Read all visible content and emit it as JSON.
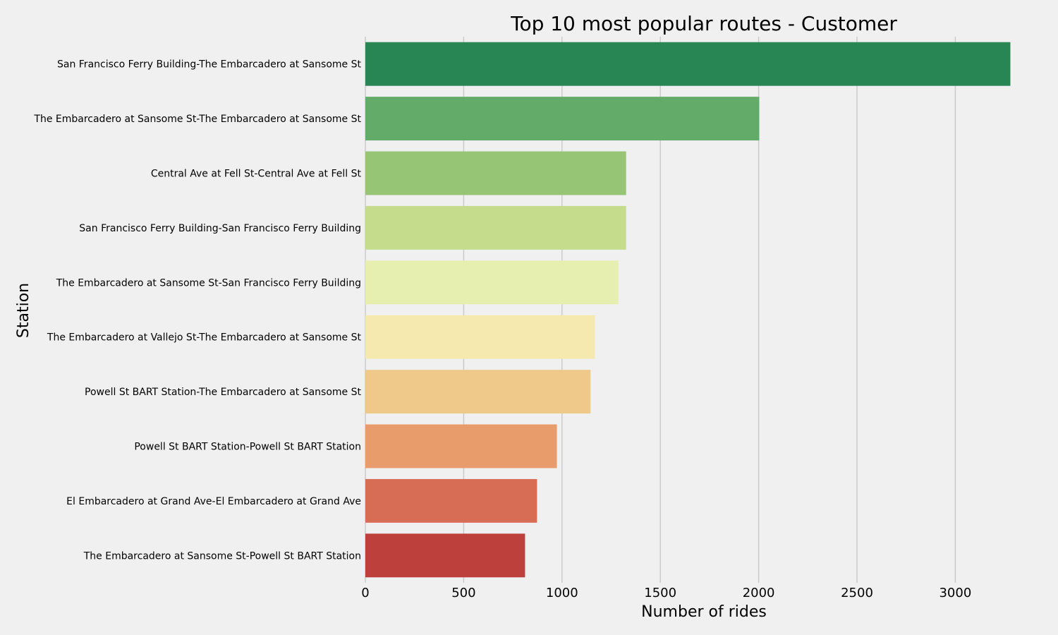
{
  "chart_data": {
    "type": "bar",
    "orientation": "horizontal",
    "title": "Top 10 most popular routes - Customer",
    "xlabel": "Number of rides",
    "ylabel": "Station",
    "xlim": [
      0,
      3350
    ],
    "xticks": [
      0,
      500,
      1000,
      1500,
      2000,
      2500,
      3000
    ],
    "grid": "vertical",
    "categories": [
      "San Francisco Ferry Building-The Embarcadero at Sansome St",
      "The Embarcadero at Sansome St-The Embarcadero at Sansome St",
      "Central Ave at Fell St-Central Ave at Fell St",
      "San Francisco Ferry Building-San Francisco Ferry Building",
      "The Embarcadero at Sansome St-San Francisco Ferry Building",
      "The Embarcadero at Vallejo St-The Embarcadero at Sansome St",
      "Powell St BART Station-The Embarcadero at Sansome St",
      "Powell St BART Station-Powell St BART Station",
      "El Embarcadero at Grand Ave-El Embarcadero at Grand Ave",
      "The Embarcadero at Sansome St-Powell St BART Station"
    ],
    "values": [
      3280,
      2003,
      1326,
      1326,
      1287,
      1167,
      1145,
      974,
      873,
      812
    ],
    "colors": [
      "#278653",
      "#63ab69",
      "#96c576",
      "#c4dc8c",
      "#e6efb0",
      "#f5e9b0",
      "#eec98a",
      "#e89c6b",
      "#d86d56",
      "#bd403d"
    ]
  }
}
